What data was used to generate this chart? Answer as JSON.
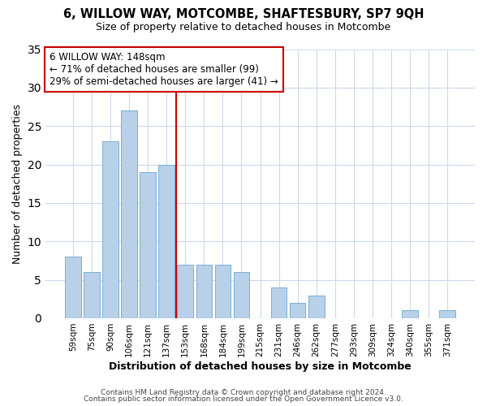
{
  "title": "6, WILLOW WAY, MOTCOMBE, SHAFTESBURY, SP7 9QH",
  "subtitle": "Size of property relative to detached houses in Motcombe",
  "xlabel": "Distribution of detached houses by size in Motcombe",
  "ylabel": "Number of detached properties",
  "bar_labels": [
    "59sqm",
    "75sqm",
    "90sqm",
    "106sqm",
    "121sqm",
    "137sqm",
    "153sqm",
    "168sqm",
    "184sqm",
    "199sqm",
    "215sqm",
    "231sqm",
    "246sqm",
    "262sqm",
    "277sqm",
    "293sqm",
    "309sqm",
    "324sqm",
    "340sqm",
    "355sqm",
    "371sqm"
  ],
  "bar_values": [
    8,
    6,
    23,
    27,
    19,
    20,
    7,
    7,
    7,
    6,
    0,
    4,
    2,
    3,
    0,
    0,
    0,
    0,
    1,
    0,
    1
  ],
  "bar_color": "#b8d0e8",
  "bar_edge_color": "#7aafd4",
  "vline_x": 5.5,
  "vline_color": "#cc0000",
  "ylim": [
    0,
    35
  ],
  "yticks": [
    0,
    5,
    10,
    15,
    20,
    25,
    30,
    35
  ],
  "annotation_box_text": "6 WILLOW WAY: 148sqm\n← 71% of detached houses are smaller (99)\n29% of semi-detached houses are larger (41) →",
  "footer_line1": "Contains HM Land Registry data © Crown copyright and database right 2024.",
  "footer_line2": "Contains public sector information licensed under the Open Government Licence v3.0.",
  "background_color": "#ffffff",
  "grid_color": "#ccdaec"
}
